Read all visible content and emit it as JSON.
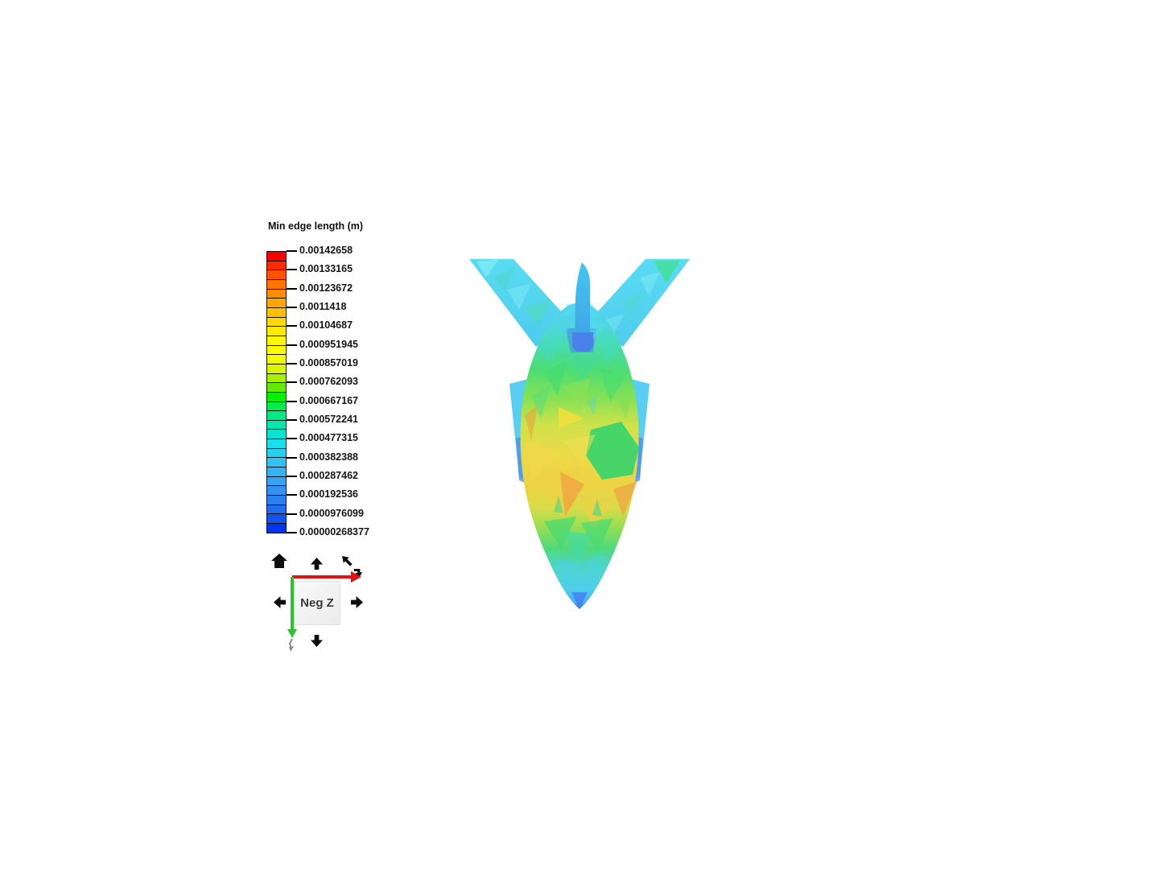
{
  "page": {
    "background": "#ffffff"
  },
  "legend": {
    "title": "Min edge length (m)",
    "ticks": [
      "0.00142658",
      "0.00133165",
      "0.00123672",
      "0.0011418",
      "0.00104687",
      "0.000951945",
      "0.000857019",
      "0.000762093",
      "0.000667167",
      "0.000572241",
      "0.000477315",
      "0.000382388",
      "0.000287462",
      "0.000192536",
      "0.0000976099",
      "0.00000268377"
    ],
    "segment_colors": [
      "#fa0000",
      "#ff2a00",
      "#ff5300",
      "#ff7300",
      "#ff8d00",
      "#ffa600",
      "#ffc000",
      "#ffd800",
      "#ffec00",
      "#fff800",
      "#ffff00",
      "#f2fb00",
      "#d8f600",
      "#a8f000",
      "#62ea00",
      "#00f200",
      "#00ee4c",
      "#00ea84",
      "#00e7ad",
      "#0ae3cf",
      "#18dfe9",
      "#23d2f2",
      "#2ec3f4",
      "#35b3f4",
      "#36a4f2",
      "#3292f0",
      "#2a80ee",
      "#1f6cec",
      "#1454ee",
      "#0033f2"
    ]
  },
  "nav": {
    "cube_label": "Neg Z",
    "axis_x_color": "#e01212",
    "axis_y_color": "#2dc52d",
    "axis_z_color": "#8a8a8a",
    "arrow_color": "#0c0c0c",
    "icons": [
      "home-icon",
      "rotate-up-icon",
      "roll-ccw-icon",
      "roll-cw-icon",
      "rotate-left-icon",
      "rotate-right-icon",
      "rotate-down-icon"
    ]
  },
  "mesh": {
    "palette": {
      "wing_cyan": "#55d6ef",
      "fin_blue": "#42c0ec",
      "fin_boot_blue": "#4b7ce9",
      "body_top_cyan": "#50d2ea",
      "body_green": "#44da70",
      "body_yellow": "#ecd94e",
      "body_orange": "#eeaa42",
      "tip_blue": "#3e6ef2"
    }
  }
}
